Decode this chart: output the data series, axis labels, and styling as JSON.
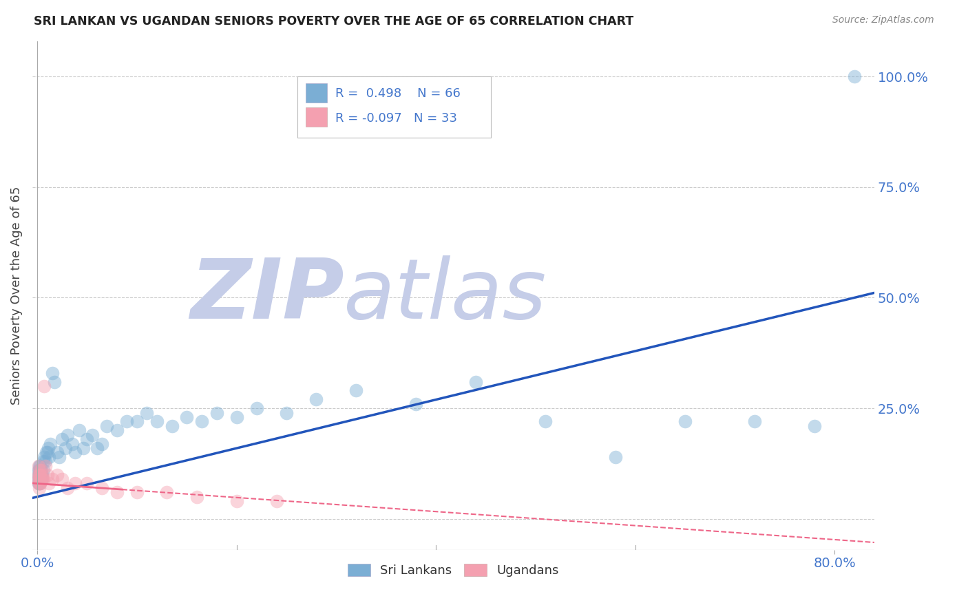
{
  "title": "SRI LANKAN VS UGANDAN SENIORS POVERTY OVER THE AGE OF 65 CORRELATION CHART",
  "source": "Source: ZipAtlas.com",
  "ylabel": "Seniors Poverty Over the Age of 65",
  "xlim": [
    -0.005,
    0.84
  ],
  "ylim": [
    -0.07,
    1.08
  ],
  "sri_lankans_R": 0.498,
  "sri_lankans_N": 66,
  "ugandans_R": -0.097,
  "ugandans_N": 33,
  "sri_color": "#7BAED4",
  "ug_color": "#F4A0B0",
  "sri_line_color": "#2255BB",
  "ug_line_color": "#EE6688",
  "right_label_color": "#4477CC",
  "bottom_label_color": "#4477CC",
  "watermark_zip_color": "#C5CDE8",
  "watermark_atlas_color": "#C5CDE8",
  "sri_lankans_x": [
    0.001,
    0.001,
    0.001,
    0.001,
    0.002,
    0.002,
    0.002,
    0.002,
    0.002,
    0.003,
    0.003,
    0.003,
    0.003,
    0.003,
    0.004,
    0.004,
    0.004,
    0.005,
    0.005,
    0.006,
    0.006,
    0.007,
    0.008,
    0.009,
    0.01,
    0.011,
    0.012,
    0.013,
    0.015,
    0.017,
    0.02,
    0.022,
    0.025,
    0.028,
    0.03,
    0.035,
    0.038,
    0.042,
    0.046,
    0.05,
    0.055,
    0.06,
    0.065,
    0.07,
    0.08,
    0.09,
    0.1,
    0.11,
    0.12,
    0.135,
    0.15,
    0.165,
    0.18,
    0.2,
    0.22,
    0.25,
    0.28,
    0.32,
    0.38,
    0.44,
    0.51,
    0.58,
    0.65,
    0.72,
    0.78,
    0.82
  ],
  "sri_lankans_y": [
    0.09,
    0.11,
    0.1,
    0.08,
    0.12,
    0.09,
    0.11,
    0.08,
    0.1,
    0.1,
    0.09,
    0.11,
    0.08,
    0.12,
    0.1,
    0.09,
    0.11,
    0.1,
    0.09,
    0.11,
    0.13,
    0.14,
    0.13,
    0.15,
    0.15,
    0.16,
    0.14,
    0.17,
    0.33,
    0.31,
    0.15,
    0.14,
    0.18,
    0.16,
    0.19,
    0.17,
    0.15,
    0.2,
    0.16,
    0.18,
    0.19,
    0.16,
    0.17,
    0.21,
    0.2,
    0.22,
    0.22,
    0.24,
    0.22,
    0.21,
    0.23,
    0.22,
    0.24,
    0.23,
    0.25,
    0.24,
    0.27,
    0.29,
    0.26,
    0.31,
    0.22,
    0.14,
    0.22,
    0.22,
    0.21,
    1.0
  ],
  "ugandans_x": [
    0.001,
    0.001,
    0.001,
    0.001,
    0.002,
    0.002,
    0.002,
    0.002,
    0.003,
    0.003,
    0.003,
    0.004,
    0.004,
    0.005,
    0.005,
    0.006,
    0.007,
    0.008,
    0.01,
    0.012,
    0.015,
    0.02,
    0.025,
    0.03,
    0.038,
    0.05,
    0.065,
    0.08,
    0.1,
    0.13,
    0.16,
    0.2,
    0.24
  ],
  "ugandans_y": [
    0.08,
    0.1,
    0.12,
    0.09,
    0.07,
    0.1,
    0.09,
    0.11,
    0.08,
    0.1,
    0.08,
    0.09,
    0.11,
    0.09,
    0.1,
    0.09,
    0.3,
    0.12,
    0.1,
    0.08,
    0.09,
    0.1,
    0.09,
    0.07,
    0.08,
    0.08,
    0.07,
    0.06,
    0.06,
    0.06,
    0.05,
    0.04,
    0.04
  ]
}
